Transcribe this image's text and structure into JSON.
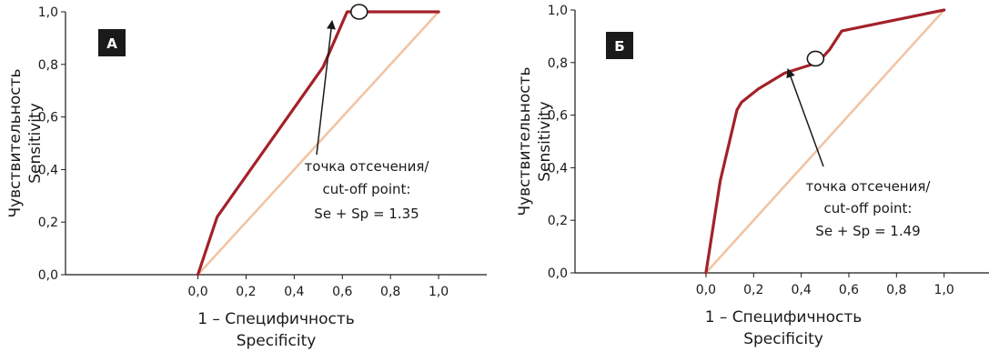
{
  "chart_data": [
    {
      "type": "line",
      "panel_label": "А",
      "xlabel": "1 – Специфичность",
      "xlabel_en": "Specificity",
      "ylabel": "Чувствительность",
      "ylabel_en": "Sensitivity",
      "xlim": [
        -0.55,
        1.2
      ],
      "ylim": [
        0,
        1
      ],
      "x_ticks": [
        "0,0",
        "0,2",
        "0,4",
        "0,6",
        "0,8",
        "1,0"
      ],
      "x_tick_values": [
        0,
        0.2,
        0.4,
        0.6,
        0.8,
        1.0
      ],
      "y_ticks": [
        "0,0",
        "0,2",
        "0,4",
        "0,6",
        "0,8",
        "1,0"
      ],
      "y_tick_values": [
        0,
        0.2,
        0.4,
        0.6,
        0.8,
        1.0
      ],
      "series": [
        {
          "color": "#a32129",
          "x": [
            0,
            0.08,
            0.52,
            0.62,
            1.0
          ],
          "y": [
            0,
            0.22,
            0.79,
            1.0,
            1.0
          ]
        },
        {
          "color": "#f2c4a4",
          "x": [
            0,
            1.0
          ],
          "y": [
            0,
            1.0
          ]
        }
      ],
      "cutoff_point": {
        "x": 0.67,
        "y": 1.0
      },
      "annotation_lines": [
        "точка отсечения/",
        "cut-off point:",
        "Se + Sp = 1.35"
      ]
    },
    {
      "type": "line",
      "panel_label": "Б",
      "xlabel": "1 – Специфичность",
      "xlabel_en": "Specificity",
      "ylabel": "Чувствительность",
      "ylabel_en": "Sensitivity",
      "xlim": [
        -0.55,
        1.2
      ],
      "ylim": [
        0,
        1
      ],
      "x_ticks": [
        "0,0",
        "0,2",
        "0,4",
        "0,6",
        "0,8",
        "1,0"
      ],
      "x_tick_values": [
        0,
        0.2,
        0.4,
        0.6,
        0.8,
        1.0
      ],
      "y_ticks": [
        "0,0",
        "0,2",
        "0,4",
        "0,6",
        "0,8",
        "1,0"
      ],
      "y_tick_values": [
        0,
        0.2,
        0.4,
        0.6,
        0.8,
        1.0
      ],
      "series": [
        {
          "color": "#a32129",
          "x": [
            0,
            0.06,
            0.13,
            0.15,
            0.22,
            0.33,
            0.47,
            0.52,
            0.57,
            0.73,
            1.0
          ],
          "y": [
            0,
            0.35,
            0.62,
            0.65,
            0.7,
            0.76,
            0.8,
            0.85,
            0.92,
            0.95,
            1.0
          ]
        },
        {
          "color": "#f2c4a4",
          "x": [
            0,
            1.0
          ],
          "y": [
            0,
            1.0
          ]
        }
      ],
      "cutoff_point": {
        "x": 0.46,
        "y": 0.815
      },
      "annotation_lines": [
        "точка отсечения/",
        "cut-off point:",
        "Se + Sp = 1.49"
      ]
    }
  ]
}
